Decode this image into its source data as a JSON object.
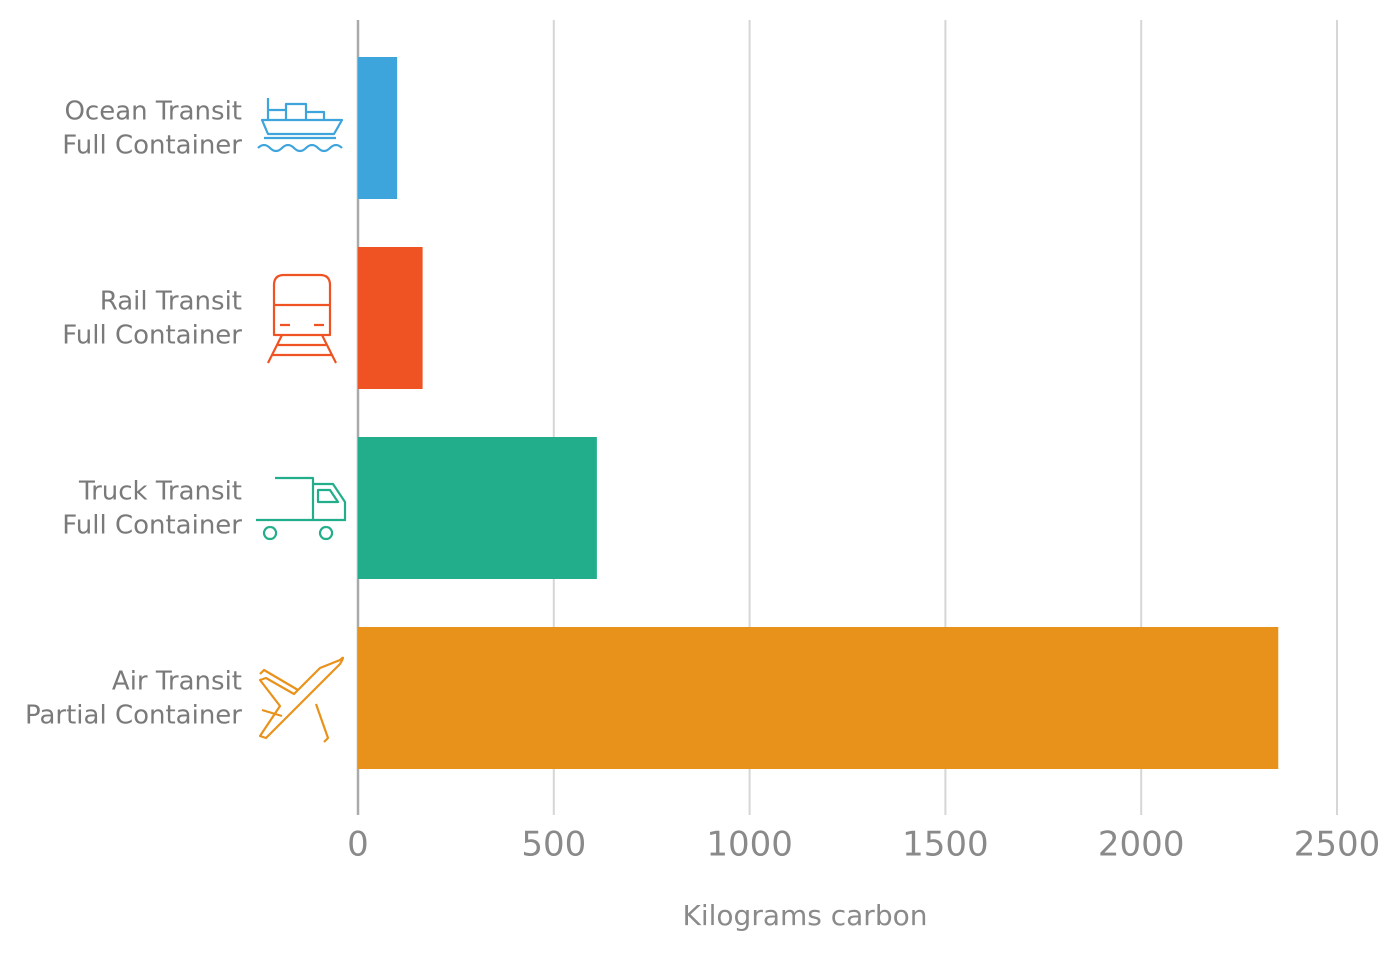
{
  "chart_data": {
    "type": "hbar",
    "categories": [
      [
        "Ocean Transit",
        "Full Container"
      ],
      [
        "Rail Transit",
        "Full Container"
      ],
      [
        "Truck Transit",
        "Full Container"
      ],
      [
        "Air Transit",
        "Partial Container"
      ]
    ],
    "values": [
      100,
      165,
      610,
      2350
    ],
    "colors": [
      "#3ea4dc",
      "#ef5323",
      "#22ae8a",
      "#e8921b"
    ],
    "xlim": [
      0,
      2500
    ],
    "xticks": [
      0,
      500,
      1000,
      1500,
      2000,
      2500
    ],
    "xlabel": "Kilograms carbon",
    "grid": true
  }
}
